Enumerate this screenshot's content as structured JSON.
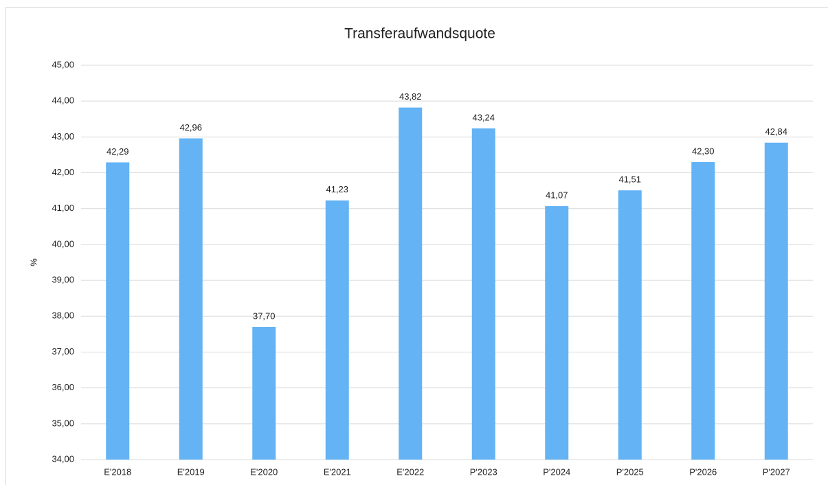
{
  "chart_data": {
    "type": "bar",
    "title": "Transferaufwandsquote",
    "y_label": "%",
    "categories": [
      "E'2018",
      "E'2019",
      "E'2020",
      "E'2021",
      "E'2022",
      "P'2023",
      "P'2024",
      "P'2025",
      "P'2026",
      "P'2027"
    ],
    "values": [
      42.29,
      42.96,
      37.7,
      41.23,
      43.82,
      43.24,
      41.07,
      41.51,
      42.3,
      42.84
    ],
    "value_labels": [
      "42,29",
      "42,96",
      "37,70",
      "41,23",
      "43,82",
      "43,24",
      "41,07",
      "41,51",
      "42,30",
      "42,84"
    ],
    "color": "#63b3f5",
    "ylim": [
      34,
      45
    ],
    "yticks": [
      {
        "value": 34,
        "label": "34,00"
      },
      {
        "value": 35,
        "label": "35,00"
      },
      {
        "value": 36,
        "label": "36,00"
      },
      {
        "value": 37,
        "label": "37,00"
      },
      {
        "value": 38,
        "label": "38,00"
      },
      {
        "value": 39,
        "label": "39,00"
      },
      {
        "value": 40,
        "label": "40,00"
      },
      {
        "value": 41,
        "label": "41,00"
      },
      {
        "value": 42,
        "label": "42,00"
      },
      {
        "value": 43,
        "label": "43,00"
      },
      {
        "value": 44,
        "label": "44,00"
      },
      {
        "value": 45,
        "label": "45,00"
      }
    ],
    "grid": true
  }
}
